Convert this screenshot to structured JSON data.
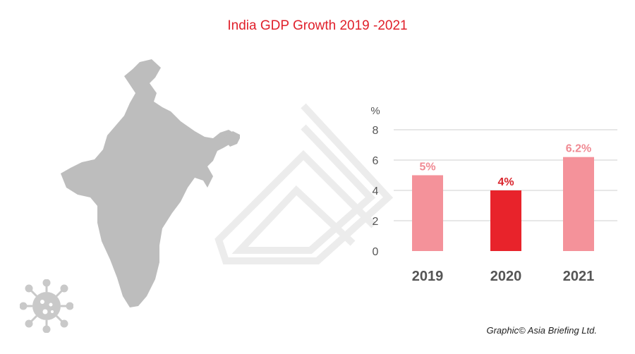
{
  "title": "India GDP Growth 2019 -2021",
  "credit": "Graphic© Asia Briefing Ltd.",
  "colors": {
    "title": "#e0202b",
    "bar_light": "#f4929a",
    "bar_dark": "#e8232b",
    "label_light": "#f08a93",
    "label_dark": "#d9232b",
    "axis_text": "#555555",
    "grid": "#cfcfcf",
    "map": "#bdbdbd"
  },
  "icons": [
    "india-map-icon",
    "watermark-logo-icon",
    "virus-icon"
  ],
  "chart_data": {
    "type": "bar",
    "categories": [
      "2019",
      "2020",
      "2021"
    ],
    "values": [
      5,
      4,
      6.2
    ],
    "data_labels": [
      "5%",
      "4%",
      "6.2%"
    ],
    "highlight": "2020",
    "ylabel": "%",
    "ylim": [
      0,
      8
    ],
    "yticks": [
      0,
      2,
      4,
      6,
      8
    ],
    "grid": true,
    "legend": "none"
  }
}
